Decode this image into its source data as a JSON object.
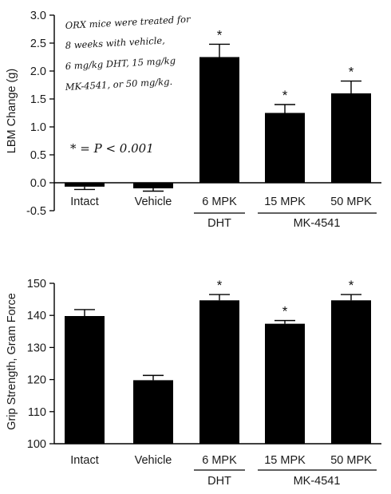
{
  "chart_data": [
    {
      "type": "bar",
      "categories": [
        "Intact",
        "Vehicle",
        "6 MPK",
        "15 MPK",
        "50 MPK"
      ],
      "values": [
        -0.07,
        -0.1,
        2.25,
        1.25,
        1.6
      ],
      "errors": [
        0.05,
        0.05,
        0.23,
        0.15,
        0.22
      ],
      "significance": [
        "",
        "",
        "*",
        "*",
        "*"
      ],
      "ylabel": "LBM Change (g)",
      "xlabel": "",
      "title": "",
      "ylim": [
        -0.5,
        3.0
      ],
      "yticks": [
        "-0.5",
        "0.0",
        "0.5",
        "1.0",
        "1.5",
        "2.0",
        "2.5",
        "3.0"
      ],
      "group_labels": [
        "DHT",
        "MK-4541"
      ],
      "annotation_lines": [
        "ORX mice were treated for",
        "8 weeks with vehicle,",
        "6 mg/kg DHT, 15 mg/kg",
        "MK-4541, or 50 mg/kg."
      ],
      "significance_note": "* = P < 0.001",
      "bar_color": "#000000"
    },
    {
      "type": "bar",
      "categories": [
        "Intact",
        "Vehicle",
        "6 MPK",
        "15 MPK",
        "50 MPK"
      ],
      "values": [
        139.8,
        119.8,
        144.7,
        137.4,
        144.7
      ],
      "errors": [
        2.0,
        1.5,
        1.8,
        1.0,
        1.8
      ],
      "significance": [
        "",
        "",
        "*",
        "*",
        "*"
      ],
      "ylabel": "Grip Strength, Gram Force",
      "xlabel": "",
      "title": "",
      "ylim": [
        100,
        150
      ],
      "yticks": [
        "100",
        "110",
        "120",
        "130",
        "140",
        "150"
      ],
      "group_labels": [
        "DHT",
        "MK-4541"
      ],
      "bar_color": "#000000"
    }
  ]
}
